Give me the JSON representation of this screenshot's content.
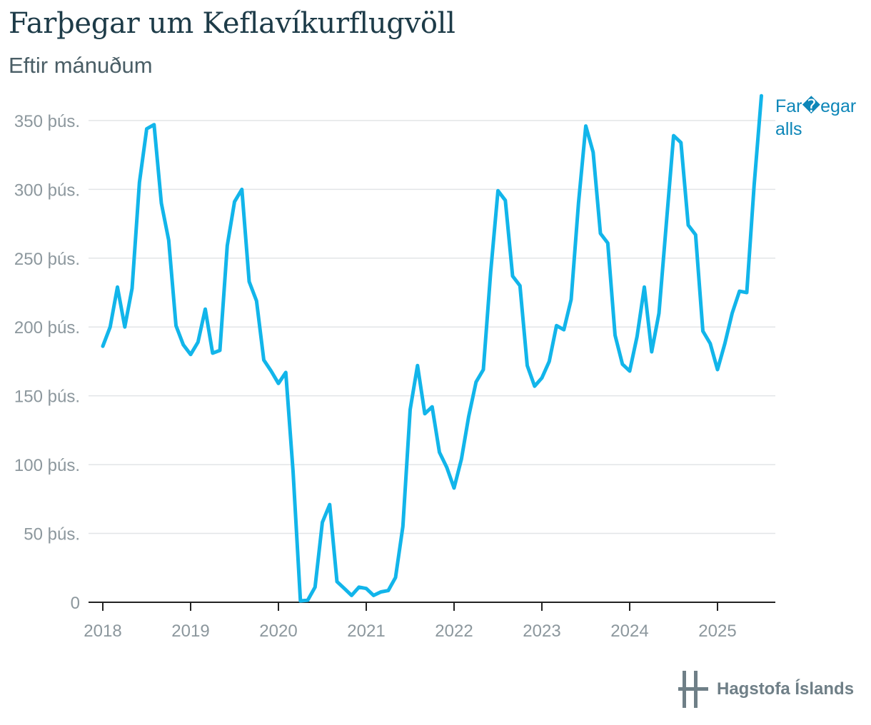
{
  "header": {
    "title": "Farþegar um Keflavíkurflugvöll",
    "subtitle": "Eftir mánuðum"
  },
  "logo": {
    "text": "Hagstofa Íslands",
    "icon": "hagstofa-logo-icon"
  },
  "colors": {
    "line": "#12b5ea",
    "label": "#0d86b8",
    "grid": "#e2e5e7",
    "axis": "#222222",
    "tick_text": "#8c979d"
  },
  "chart_data": {
    "type": "line",
    "x_tick_labels": [
      "2018",
      "2019",
      "2020",
      "2021",
      "2022",
      "2023",
      "2024",
      "2025"
    ],
    "y_tick_labels": [
      "0",
      "50 þús.",
      "100 þús.",
      "150 þús.",
      "200 þús.",
      "250 þús.",
      "300 þús.",
      "350 þús."
    ],
    "ylim": [
      0,
      365000
    ],
    "grid": "horizontal",
    "series": [
      {
        "name": "Far�egar alls",
        "start": "2018-01",
        "values": [
          186000,
          200000,
          229000,
          200000,
          228000,
          305000,
          344000,
          347000,
          290000,
          263000,
          201000,
          187000,
          180000,
          189000,
          213000,
          181000,
          183000,
          259000,
          291000,
          300000,
          233000,
          219000,
          176000,
          168000,
          159000,
          167000,
          95000,
          1000,
          1500,
          11000,
          58000,
          71000,
          15000,
          10000,
          5000,
          11000,
          10000,
          5000,
          7500,
          8500,
          18000,
          55000,
          140000,
          172000,
          137000,
          142000,
          109000,
          98000,
          83000,
          104000,
          135000,
          160000,
          169000,
          240000,
          299000,
          292000,
          237000,
          230000,
          172000,
          157000,
          163000,
          175000,
          201000,
          198000,
          220000,
          290000,
          346000,
          327000,
          268000,
          261000,
          194000,
          173000,
          168000,
          193000,
          229000,
          182000,
          210000,
          275000,
          339000,
          334000,
          274000,
          267000,
          197000,
          188000,
          169000,
          188000,
          210000,
          226000,
          225000,
          303000,
          368000
        ]
      }
    ]
  }
}
